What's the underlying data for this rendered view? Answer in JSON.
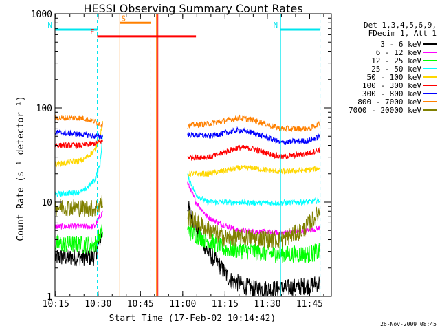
{
  "chart_data": {
    "type": "line",
    "title": "HESSI Observing Summary Count Rates",
    "xlabel": "Start Time (17-Feb-02 10:14:42)",
    "ylabel": "Count Rate (s⁻¹ detector⁻¹)",
    "ylog": true,
    "ylim": [
      1,
      1000
    ],
    "xlim_minutes": [
      0,
      98
    ],
    "x_ticks": [
      {
        "t": 0.3,
        "label": "10:15"
      },
      {
        "t": 15.3,
        "label": "10:30"
      },
      {
        "t": 30.3,
        "label": "10:45"
      },
      {
        "t": 45.3,
        "label": "11:00"
      },
      {
        "t": 60.3,
        "label": "11:15"
      },
      {
        "t": 75.3,
        "label": "11:30"
      },
      {
        "t": 90.3,
        "label": "11:45"
      }
    ],
    "y_ticks": [
      {
        "v": 1,
        "label": "1"
      },
      {
        "v": 10,
        "label": "10"
      },
      {
        "v": 100,
        "label": "100"
      },
      {
        "v": 1000,
        "label": "1000"
      }
    ],
    "legend_header": [
      "Det 1,3,4,5,6,9,",
      "FDecim 1, Att 1"
    ],
    "gap_minutes": [
      36,
      47
    ],
    "series": [
      {
        "name": "3 - 6 keV",
        "color": "#000000",
        "seg1": [
          [
            0,
            2.6
          ],
          [
            14,
            2.6
          ],
          [
            17,
            5
          ]
        ],
        "seg2": [
          [
            47,
            9
          ],
          [
            50,
            5.5
          ],
          [
            54,
            3
          ],
          [
            58,
            2.2
          ],
          [
            62,
            1.5
          ],
          [
            70,
            1.2
          ],
          [
            80,
            1.2
          ],
          [
            90,
            1.3
          ],
          [
            94,
            1.4
          ]
        ]
      },
      {
        "name": "6 - 12 keV",
        "color": "#ff00ff",
        "seg1": [
          [
            0,
            5.5
          ],
          [
            14,
            5.5
          ],
          [
            17,
            8
          ]
        ],
        "seg2": [
          [
            47,
            16
          ],
          [
            50,
            10
          ],
          [
            54,
            7
          ],
          [
            58,
            6
          ],
          [
            65,
            5
          ],
          [
            80,
            4.7
          ],
          [
            90,
            5
          ],
          [
            94,
            5.3
          ]
        ]
      },
      {
        "name": "12 - 25 keV",
        "color": "#00ff00",
        "seg1": [
          [
            0,
            3.6
          ],
          [
            14,
            3.5
          ],
          [
            17,
            5
          ]
        ],
        "seg2": [
          [
            47,
            5
          ],
          [
            60,
            3.2
          ],
          [
            70,
            3
          ],
          [
            80,
            2.8
          ],
          [
            90,
            2.8
          ],
          [
            94,
            3
          ]
        ]
      },
      {
        "name": "25 - 50 keV",
        "color": "#00ffff",
        "seg1": [
          [
            0,
            12
          ],
          [
            10,
            13
          ],
          [
            14,
            17
          ],
          [
            16,
            25
          ],
          [
            17,
            55
          ]
        ],
        "seg2": [
          [
            47,
            19
          ],
          [
            50,
            12
          ],
          [
            54,
            10
          ],
          [
            60,
            10
          ],
          [
            75,
            9.8
          ],
          [
            90,
            10
          ],
          [
            94,
            10.5
          ]
        ]
      },
      {
        "name": "50 - 100 keV",
        "color": "#ffd700",
        "seg1": [
          [
            0,
            25
          ],
          [
            10,
            28
          ],
          [
            14,
            35
          ],
          [
            16,
            50
          ],
          [
            17,
            70
          ]
        ],
        "seg2": [
          [
            47,
            20
          ],
          [
            55,
            20
          ],
          [
            65,
            23
          ],
          [
            70,
            23
          ],
          [
            80,
            21
          ],
          [
            90,
            22
          ],
          [
            94,
            23
          ]
        ]
      },
      {
        "name": "100 - 300 keV",
        "color": "#ff0000",
        "seg1": [
          [
            0,
            40
          ],
          [
            10,
            40
          ],
          [
            14,
            42
          ],
          [
            17,
            45
          ]
        ],
        "seg2": [
          [
            47,
            30
          ],
          [
            55,
            30
          ],
          [
            65,
            38
          ],
          [
            70,
            37
          ],
          [
            80,
            30
          ],
          [
            90,
            33
          ],
          [
            94,
            36
          ]
        ]
      },
      {
        "name": "300 - 800 keV",
        "color": "#0000ff",
        "seg1": [
          [
            0,
            55
          ],
          [
            10,
            52
          ],
          [
            14,
            50
          ],
          [
            17,
            50
          ]
        ],
        "seg2": [
          [
            47,
            52
          ],
          [
            55,
            50
          ],
          [
            65,
            58
          ],
          [
            70,
            55
          ],
          [
            80,
            43
          ],
          [
            90,
            45
          ],
          [
            94,
            50
          ]
        ]
      },
      {
        "name": "800 - 7000 keV",
        "color": "#ff8000",
        "seg1": [
          [
            0,
            78
          ],
          [
            10,
            78
          ],
          [
            14,
            72
          ],
          [
            17,
            65
          ]
        ],
        "seg2": [
          [
            47,
            65
          ],
          [
            55,
            68
          ],
          [
            65,
            78
          ],
          [
            70,
            75
          ],
          [
            80,
            60
          ],
          [
            90,
            60
          ],
          [
            94,
            68
          ]
        ]
      },
      {
        "name": "7000 - 20000 keV",
        "color": "#808000",
        "seg1": [
          [
            0,
            9
          ],
          [
            14,
            8.5
          ],
          [
            17,
            10
          ]
        ],
        "seg2": [
          [
            47,
            7
          ],
          [
            55,
            5
          ],
          [
            60,
            4.2
          ],
          [
            70,
            4.2
          ],
          [
            80,
            4
          ],
          [
            88,
            5
          ],
          [
            94,
            8
          ]
        ]
      }
    ],
    "flag_bars": [
      {
        "label": "S",
        "color": "#ff8000",
        "x": [
          23,
          34
        ],
        "y": 800
      },
      {
        "label": "N",
        "color": "#00e5ee",
        "x": [
          0,
          15
        ],
        "y": 680
      },
      {
        "label": "N",
        "color": "#00e5ee",
        "x": [
          80,
          94
        ],
        "y": 680
      },
      {
        "label": "F",
        "color": "#ff0000",
        "x": [
          15,
          50
        ],
        "y": 575
      }
    ],
    "markers": [
      {
        "x": 15,
        "color": "#00e5ee",
        "style": "dashed"
      },
      {
        "x": 23,
        "color": "#ff8000",
        "style": "solid"
      },
      {
        "x": 34,
        "color": "#ff8000",
        "style": "dashed"
      },
      {
        "x": 36,
        "color": "#ff8000",
        "style": "solid"
      },
      {
        "x": 36.5,
        "color": "#ff0000",
        "style": "solid"
      },
      {
        "x": 80,
        "color": "#00e5ee",
        "style": "solid"
      },
      {
        "x": 94,
        "color": "#00e5ee",
        "style": "dashed"
      }
    ]
  },
  "timestamp": "26-Nov-2009 08:45"
}
